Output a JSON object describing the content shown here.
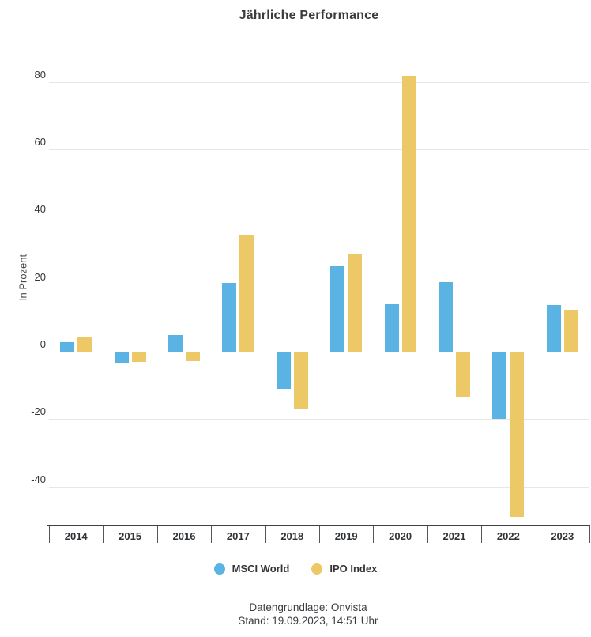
{
  "page": {
    "background": "#ffffff"
  },
  "chart_data": {
    "type": "bar",
    "title": "Jährliche Performance",
    "ylabel": "In Prozent",
    "xlabel": "",
    "categories": [
      "2014",
      "2015",
      "2016",
      "2017",
      "2018",
      "2019",
      "2020",
      "2021",
      "2022",
      "2023"
    ],
    "series": [
      {
        "name": "MSCI World",
        "color": "#5BB3E4",
        "values": [
          2.8,
          -3.0,
          4.9,
          20.3,
          -10.8,
          25.3,
          14.0,
          20.5,
          -19.8,
          13.7
        ]
      },
      {
        "name": "IPO Index",
        "color": "#ECC966",
        "values": [
          4.5,
          -2.9,
          -2.6,
          34.6,
          -16.9,
          29.0,
          81.8,
          -13.2,
          -48.8,
          12.4
        ]
      }
    ],
    "yticks": [
      80,
      60,
      40,
      20,
      0,
      -20,
      -40
    ],
    "ylim": [
      -51.6,
      91.4
    ],
    "grid": "horizontal",
    "legend_position": "bottom"
  },
  "footer": {
    "line1": "Datengrundlage: Onvista",
    "line2": "Stand: 19.09.2023, 14:51 Uhr"
  },
  "colors": {
    "grid": "#e6e6e6",
    "axis_line": "#3f4245",
    "tick": "#55585b",
    "title_text": "#393c3f",
    "footer_text": "#3a3d40"
  }
}
